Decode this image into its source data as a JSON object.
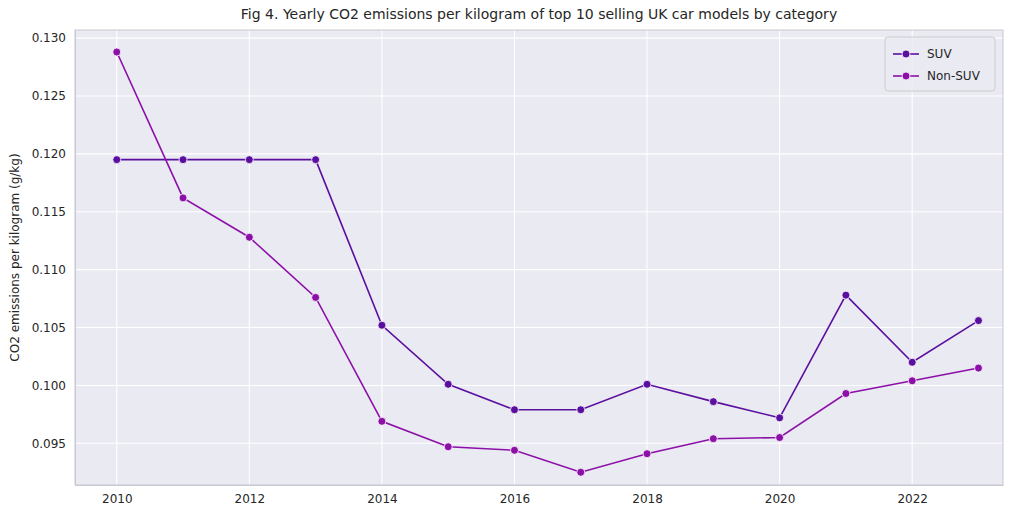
{
  "chart_data": {
    "type": "line",
    "title": "Fig 4. Yearly CO2 emissions per kilogram of top 10 selling UK car models by category",
    "y_label": "CO2 emissions per kilogram (g/kg)",
    "x": [
      2010,
      2011,
      2012,
      2013,
      2014,
      2015,
      2016,
      2017,
      2018,
      2019,
      2020,
      2021,
      2022,
      2023
    ],
    "series": [
      {
        "name": "SUV",
        "color": "#5b0f9f",
        "marker": "circle",
        "line_style": "solid",
        "values": [
          0.1195,
          0.1195,
          0.1195,
          0.1195,
          0.1052,
          0.1001,
          0.0979,
          0.0979,
          0.1001,
          0.0986,
          0.0972,
          0.1078,
          0.102,
          0.1056
        ]
      },
      {
        "name": "Non-SUV",
        "color": "#8c10a8",
        "marker": "circle",
        "line_style": "solid",
        "values": [
          0.1288,
          0.1162,
          0.1128,
          0.1076,
          0.0969,
          0.0947,
          0.0944,
          0.0925,
          0.0941,
          0.0954,
          0.0955,
          0.0993,
          0.1004,
          0.1015
        ]
      }
    ],
    "xlim": [
      2009.37,
      2023.37
    ],
    "xticks": [
      2010,
      2012,
      2014,
      2016,
      2018,
      2020,
      2022
    ],
    "ylim": [
      0.0914,
      0.1307
    ],
    "yticks": [
      0.095,
      {
        "value": 0.1,
        "label": "0.100"
      },
      0.105,
      {
        "value": 0.11,
        "label": "0.110"
      },
      0.115,
      {
        "value": 0.12,
        "label": "0.120"
      },
      0.125,
      {
        "value": 0.13,
        "label": "0.130"
      }
    ],
    "grid": true,
    "legend": "upper right"
  }
}
